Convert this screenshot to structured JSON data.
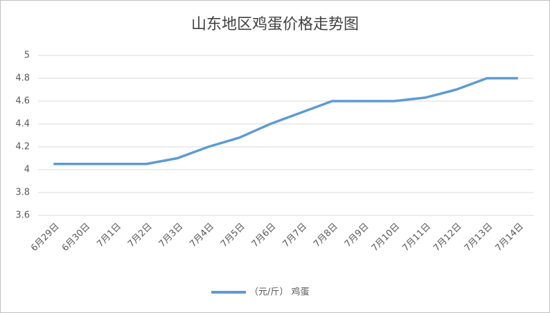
{
  "chart_data": {
    "type": "line",
    "title": "山东地区鸡蛋价格走势图",
    "categories": [
      "6月29日",
      "6月30日",
      "7月1日",
      "7月2日",
      "7月3日",
      "7月4日",
      "7月5日",
      "7月6日",
      "7月7日",
      "7月8日",
      "7月9日",
      "7月10日",
      "7月11日",
      "7月12日",
      "7月13日",
      "7月14日"
    ],
    "series": [
      {
        "name": "（元/斤） 鸡蛋",
        "color": "#5b9bd5",
        "values": [
          4.05,
          4.05,
          4.05,
          4.05,
          4.1,
          4.2,
          4.28,
          4.4,
          4.5,
          4.6,
          4.6,
          4.6,
          4.63,
          4.7,
          4.8,
          4.8
        ]
      }
    ],
    "ylim": [
      3.6,
      5
    ],
    "yticks": [
      3.6,
      3.8,
      4,
      4.2,
      4.4,
      4.6,
      4.8,
      5
    ],
    "grid": true,
    "legend": "bottom"
  }
}
